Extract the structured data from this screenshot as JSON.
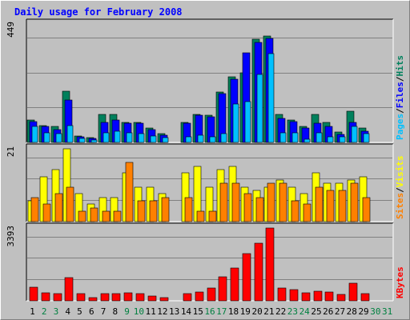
{
  "chart_data": {
    "type": "bar",
    "title": "Daily usage for February 2008",
    "categories": [
      "1",
      "2",
      "3",
      "4",
      "5",
      "6",
      "7",
      "8",
      "9",
      "10",
      "11",
      "12",
      "13",
      "14",
      "15",
      "16",
      "17",
      "18",
      "19",
      "20",
      "21",
      "22",
      "23",
      "24",
      "25",
      "26",
      "27",
      "28",
      "29",
      "30",
      "31"
    ],
    "weekend_days": [
      "2",
      "3",
      "9",
      "10",
      "16",
      "17",
      "23",
      "24",
      "30",
      "31"
    ],
    "panels": [
      {
        "name": "top",
        "ymax_label": "449",
        "ylim": [
          0,
          449
        ],
        "series": [
          {
            "name": "Hits",
            "color": "#00805c",
            "values": [
              85,
              65,
              62,
              195,
              23,
              18,
              105,
              105,
              75,
              75,
              55,
              33,
              0,
              75,
              105,
              102,
              190,
              248,
              264,
              390,
              405,
              105,
              85,
              62,
              106,
              75,
              38,
              118,
              55,
              0,
              0
            ]
          },
          {
            "name": "Files",
            "color": "#0000ff",
            "values": [
              80,
              60,
              48,
              161,
              20,
              16,
              75,
              85,
              72,
              72,
              50,
              28,
              0,
              72,
              102,
              98,
              185,
              240,
              340,
              380,
              395,
              90,
              78,
              55,
              72,
              60,
              30,
              75,
              42,
              0,
              0
            ]
          },
          {
            "name": "Pages",
            "color": "#00c0ff",
            "values": [
              60,
              35,
              33,
              65,
              15,
              10,
              35,
              42,
              35,
              32,
              25,
              17,
              0,
              22,
              26,
              22,
              32,
              146,
              155,
              258,
              338,
              36,
              35,
              13,
              37,
              22,
              20,
              60,
              32,
              0,
              0
            ]
          }
        ],
        "legend_labels": [
          "Pages",
          "Files",
          "Hits"
        ],
        "legend_seps": [
          "/",
          "/"
        ]
      },
      {
        "name": "middle",
        "ymax_label": "21",
        "ylim": [
          0,
          21
        ],
        "series": [
          {
            "name": "Visits",
            "color": "#ffff00",
            "values": [
              6,
              13,
              15,
              21,
              8,
              5,
              7,
              7,
              14,
              10,
              10,
              8,
              0,
              14,
              16,
              10,
              15,
              16,
              10,
              9,
              10,
              12,
              10,
              8,
              14,
              11,
              11,
              12,
              13,
              0,
              0
            ]
          },
          {
            "name": "Sites",
            "color": "#ff8000",
            "values": [
              7,
              5,
              8,
              10,
              3,
              4,
              3,
              3,
              17,
              6,
              6,
              7,
              0,
              7,
              3,
              3,
              11,
              11,
              8,
              7,
              11,
              11,
              6,
              5,
              10,
              9,
              9,
              11,
              7,
              0,
              0
            ]
          }
        ],
        "legend_labels": [
          "Sites",
          "Visits"
        ],
        "legend_seps": [
          "/"
        ]
      },
      {
        "name": "bottom",
        "ymax_label": "3393",
        "ylim": [
          0,
          3393
        ],
        "series": [
          {
            "name": "KBytes",
            "color": "#ff0000",
            "values": [
              625,
              375,
              330,
              1075,
              335,
              165,
              350,
              335,
              360,
              320,
              240,
              165,
              0,
              340,
              415,
              610,
              1105,
              1545,
              2185,
              2680,
              3393,
              605,
              525,
              390,
              465,
              420,
              290,
              820,
              350,
              0,
              0
            ]
          }
        ],
        "legend_labels": [
          "KBytes"
        ],
        "legend_seps": []
      }
    ],
    "grid": true
  }
}
